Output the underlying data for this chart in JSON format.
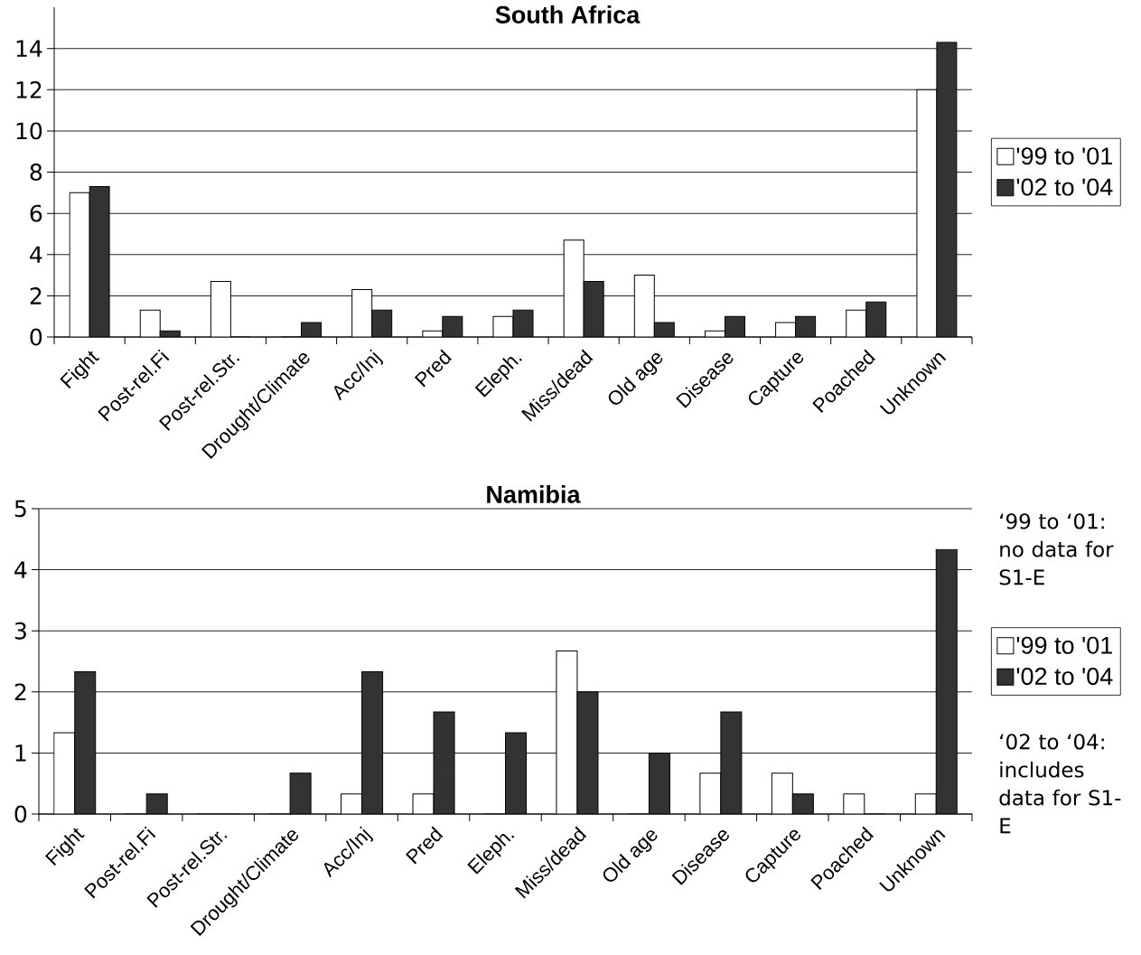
{
  "chart_data": [
    {
      "type": "bar",
      "title": "South Africa",
      "categories": [
        "Fight",
        "Post-rel.Fi",
        "Post-rel.Str.",
        "Drought/Climate",
        "Acc/Inj",
        "Pred",
        "Eleph.",
        "Miss/dead",
        "Old age",
        "Disease",
        "Capture",
        "Poached",
        "Unknown"
      ],
      "series": [
        {
          "name": "'99 to '01",
          "color": "#ffffff",
          "values": [
            7.0,
            1.3,
            2.7,
            0,
            2.3,
            0.3,
            1.0,
            4.7,
            3.0,
            0.3,
            0.7,
            1.3,
            12.0
          ]
        },
        {
          "name": "'02 to '04",
          "color": "#333333",
          "values": [
            7.3,
            0.3,
            0,
            0.7,
            1.3,
            1.0,
            1.3,
            2.7,
            0.7,
            1.0,
            1.0,
            1.7,
            14.3
          ]
        }
      ],
      "ylim": [
        0,
        16
      ],
      "yticks": [
        0,
        2,
        4,
        6,
        8,
        10,
        12,
        14
      ],
      "grid": "y",
      "legend": "right"
    },
    {
      "type": "bar",
      "title": "Namibia",
      "categories": [
        "Fight",
        "Post-rel.Fi",
        "Post-rel.Str.",
        "Drought/Climate",
        "Acc/Inj",
        "Pred",
        "Eleph.",
        "Miss/dead",
        "Old age",
        "Disease",
        "Capture",
        "Poached",
        "Unknown"
      ],
      "series": [
        {
          "name": "'99 to '01",
          "color": "#ffffff",
          "values": [
            1.33,
            0,
            0,
            0,
            0.33,
            0.33,
            0,
            2.67,
            0,
            0.67,
            0.67,
            0.33,
            0.33
          ]
        },
        {
          "name": "'02 to '04",
          "color": "#333333",
          "values": [
            2.33,
            0.33,
            0,
            0.67,
            2.33,
            1.67,
            1.33,
            2.0,
            1.0,
            1.67,
            0.33,
            0,
            4.33
          ]
        }
      ],
      "ylim": [
        0,
        5
      ],
      "yticks": [
        0,
        1,
        2,
        3,
        4,
        5
      ],
      "grid": "y",
      "legend": "right",
      "annotations": [
        "‘99 to ‘01: no data for S1-E",
        "‘02 to ‘04: includes data for S1-E"
      ]
    }
  ]
}
